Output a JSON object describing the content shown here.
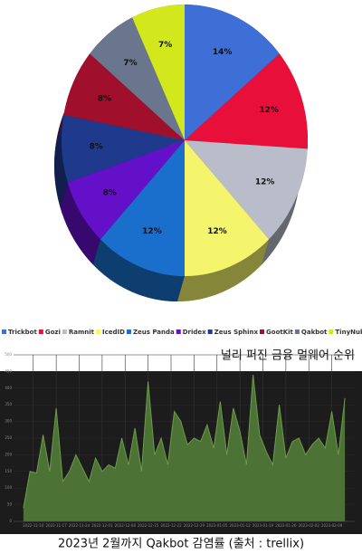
{
  "chart_data": [
    {
      "type": "pie",
      "categories": [
        "Trickbot",
        "Gozi",
        "Ramnit",
        "IcedID",
        "Zeus Panda",
        "Dridex",
        "Zeus Sphinx",
        "GootKit",
        "Qakbot",
        "TinyNuke"
      ],
      "values": [
        14,
        12,
        12,
        12,
        12,
        8,
        8,
        8,
        7,
        7
      ],
      "value_labels": [
        "14%",
        "12%",
        "12%",
        "12%",
        "12%",
        "8%",
        "8%",
        "8%",
        "7%",
        "7%"
      ],
      "colors": [
        "#3d6fd6",
        "#e8103a",
        "#b8bdc9",
        "#f4f56c",
        "#1a6fcc",
        "#6410c8",
        "#1f3a8c",
        "#a0102c",
        "#69768e",
        "#d3e81c"
      ],
      "legend": "bottom",
      "caption": "널리 퍼진 금융 멀웨어 순위"
    },
    {
      "type": "area",
      "x": [
        "2022-11-07",
        "2022-11-09",
        "2022-11-11",
        "2022-11-13",
        "2022-11-15",
        "2022-11-17",
        "2022-11-19",
        "2022-11-21",
        "2022-11-23",
        "2022-11-25",
        "2022-11-27",
        "2022-11-29",
        "2022-12-01",
        "2022-12-03",
        "2022-12-05",
        "2022-12-07",
        "2022-12-09",
        "2022-12-11",
        "2022-12-13",
        "2022-12-15",
        "2022-12-17",
        "2022-12-19",
        "2022-12-21",
        "2022-12-23",
        "2022-12-25",
        "2022-12-27",
        "2022-12-29",
        "2022-12-31",
        "2023-01-02",
        "2023-01-04",
        "2023-01-06",
        "2023-01-08",
        "2023-01-10",
        "2023-01-12",
        "2023-01-14",
        "2023-01-16",
        "2023-01-18",
        "2023-01-20",
        "2023-01-22",
        "2023-01-24",
        "2023-01-26",
        "2023-01-28",
        "2023-01-30",
        "2023-02-01",
        "2023-02-03",
        "2023-02-05",
        "2023-02-07",
        "2023-02-09",
        "2023-02-11",
        "2023-02-13"
      ],
      "values": [
        40,
        150,
        145,
        260,
        150,
        340,
        120,
        150,
        200,
        160,
        120,
        190,
        150,
        170,
        160,
        250,
        170,
        280,
        150,
        420,
        200,
        250,
        170,
        330,
        300,
        230,
        250,
        240,
        290,
        220,
        360,
        200,
        340,
        270,
        170,
        440,
        260,
        210,
        170,
        350,
        190,
        240,
        250,
        200,
        230,
        250,
        220,
        330,
        200,
        370
      ],
      "color": "#4d7235",
      "line_color": "#6d9a4c",
      "xlim": [
        "2022-11-04",
        "2023-02-16"
      ],
      "xticks": [
        "2022-11-10",
        "2022-11-17",
        "2022-11-24",
        "2022-12-01",
        "2022-12-08",
        "2022-12-15",
        "2022-12-22",
        "2022-12-29",
        "2023-01-05",
        "2023-01-12",
        "2023-01-19",
        "2023-01-26",
        "2023-02-02",
        "2023-02-09"
      ],
      "ylim": [
        0,
        500
      ],
      "yticks": [
        0,
        50,
        100,
        150,
        200,
        250,
        300,
        350,
        400,
        450,
        500
      ],
      "grid": true,
      "caption": "2023년 2월까지 Qakbot 감염률 (출처 : trellix)"
    }
  ]
}
